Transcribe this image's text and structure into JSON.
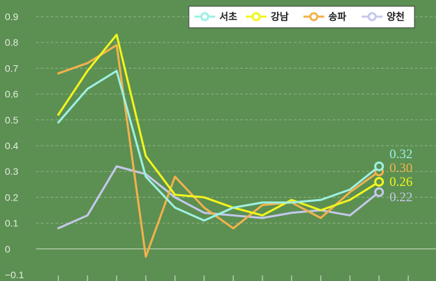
{
  "chart_data": {
    "type": "line",
    "title": "",
    "xlabel": "",
    "ylabel": "",
    "ylim": [
      -0.1,
      0.9
    ],
    "y_ticks": [
      "0.9",
      "0.8",
      "0.7",
      "0.6",
      "0.5",
      "0.4",
      "0.3",
      "0.2",
      "0.1",
      "0",
      "−0.1"
    ],
    "y_tick_values": [
      0.9,
      0.8,
      0.7,
      0.6,
      0.5,
      0.4,
      0.3,
      0.2,
      0.1,
      0,
      -0.1
    ],
    "grid": "horizontal-dashed",
    "legend_position": "top-right",
    "x": [
      1,
      2,
      3,
      4,
      5,
      6,
      7,
      8,
      9,
      10,
      11,
      12
    ],
    "series": [
      {
        "name": "서초",
        "color": "#9ef0e2",
        "values": [
          0.49,
          0.62,
          0.69,
          0.28,
          0.16,
          0.11,
          0.16,
          0.18,
          0.18,
          0.19,
          0.23,
          0.32
        ],
        "end_label": "0.32"
      },
      {
        "name": "강남",
        "color": "#f2f51e",
        "values": [
          0.52,
          0.69,
          0.83,
          0.36,
          0.21,
          0.2,
          0.16,
          0.13,
          0.19,
          0.15,
          0.19,
          0.26
        ],
        "end_label": "0.26"
      },
      {
        "name": "송파",
        "color": "#f2b24c",
        "values": [
          0.68,
          0.72,
          0.79,
          -0.03,
          0.28,
          0.16,
          0.08,
          0.17,
          0.18,
          0.12,
          0.22,
          0.3
        ],
        "end_label": "0.30"
      },
      {
        "name": "양천",
        "color": "#c4c8ec",
        "values": [
          0.08,
          0.13,
          0.32,
          0.29,
          0.2,
          0.14,
          0.13,
          0.12,
          0.14,
          0.15,
          0.13,
          0.22
        ],
        "end_label": "0.22"
      }
    ]
  }
}
